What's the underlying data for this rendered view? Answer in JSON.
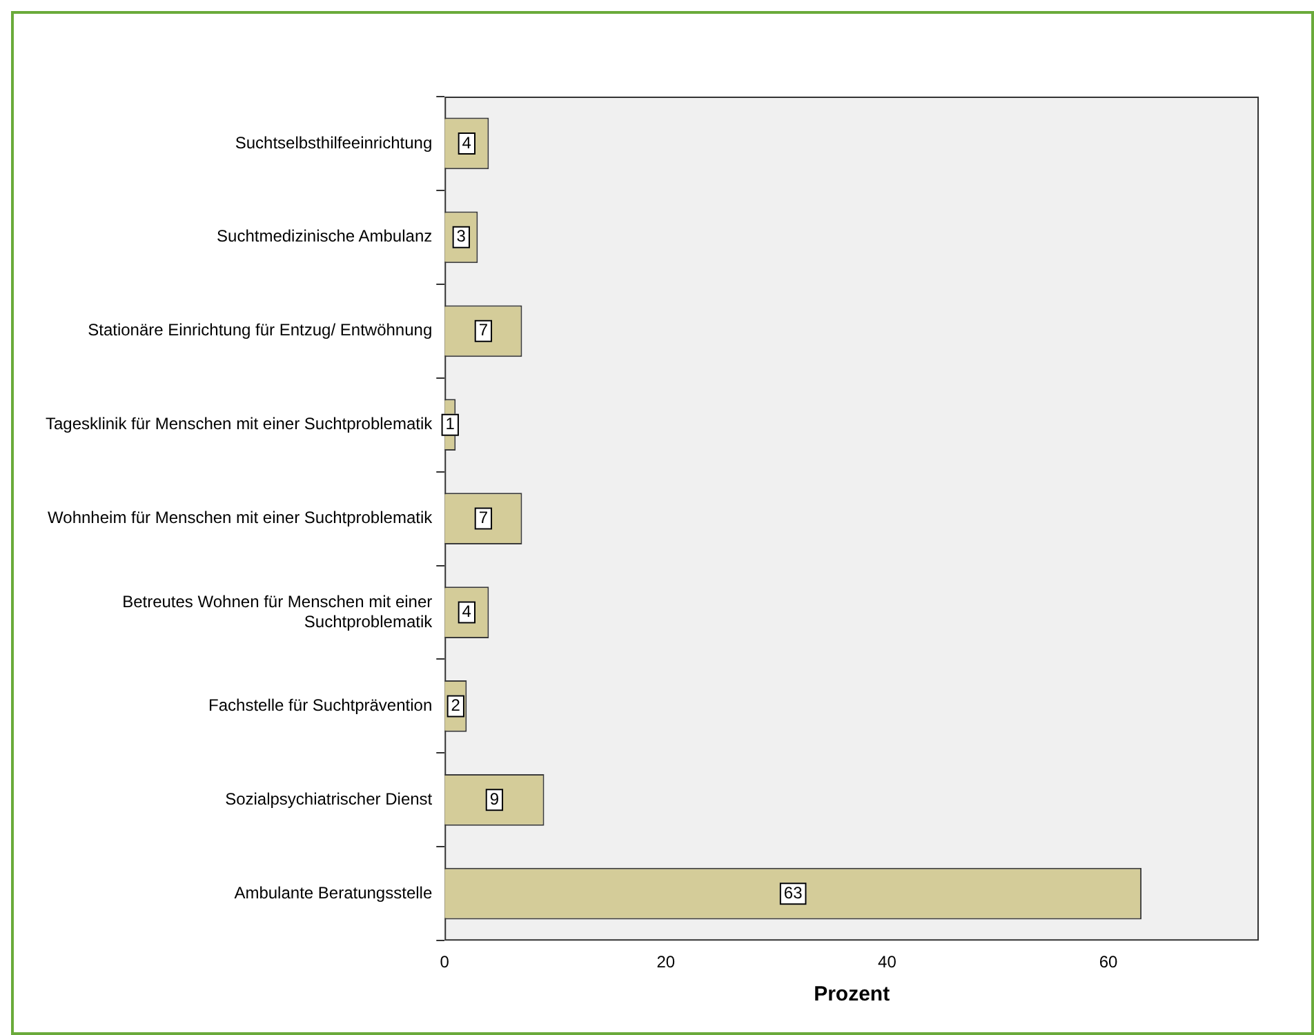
{
  "chart_data": {
    "type": "bar",
    "orientation": "horizontal",
    "xlabel": "Prozent",
    "categories": [
      "Suchtselbsthilfeeinrichtung",
      "Suchtmedizinische Ambulanz",
      "Stationäre Einrichtung für Entzug/ Entwöhnung",
      "Tagesklinik für Menschen mit einer Suchtproblematik",
      "Wohnheim für Menschen mit einer Suchtproblematik",
      "Betreutes Wohnen für Menschen mit einer Suchtproblematik",
      "Fachstelle für Suchtprävention",
      "Sozialpsychiatrischer Dienst",
      "Ambulante Beratungsstelle"
    ],
    "values": [
      4,
      3,
      7,
      1,
      7,
      4,
      2,
      9,
      63
    ],
    "color": "#d4cc99",
    "xlim": [
      0,
      73.6
    ],
    "xticks": [
      0,
      20,
      40,
      60
    ],
    "grid": false,
    "legend": false,
    "data_labels": true
  }
}
